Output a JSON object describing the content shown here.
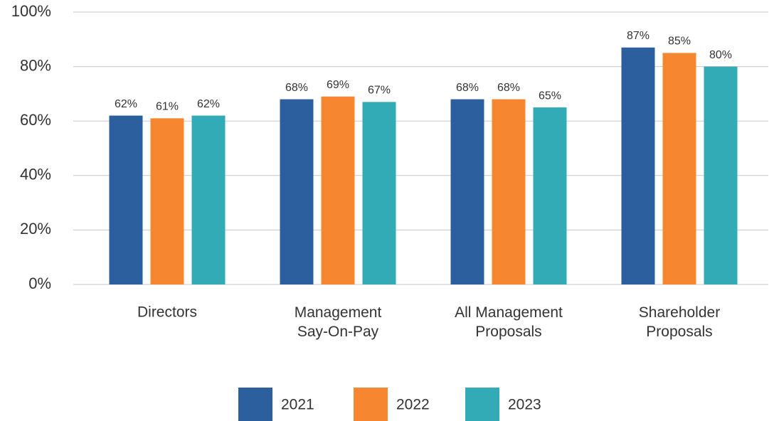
{
  "chart_data": {
    "type": "bar",
    "categories": [
      "Directors",
      "Management\nSay-On-Pay",
      "All Management\nProposals",
      "Shareholder\nProposals"
    ],
    "series": [
      {
        "name": "2021",
        "color": "#2c5f9e",
        "values": [
          62,
          68,
          68,
          87
        ],
        "value_labels": [
          "62%",
          "68%",
          "68%",
          "87%"
        ]
      },
      {
        "name": "2022",
        "color": "#f6862f",
        "values": [
          61,
          69,
          68,
          85
        ],
        "value_labels": [
          "61%",
          "69%",
          "68%",
          "85%"
        ]
      },
      {
        "name": "2023",
        "color": "#33abb6",
        "values": [
          62,
          67,
          65,
          80
        ],
        "value_labels": [
          "62%",
          "67%",
          "65%",
          "80%"
        ]
      }
    ],
    "ylim": [
      0,
      100
    ],
    "yticks": [
      {
        "value": 0,
        "label": "0%"
      },
      {
        "value": 20,
        "label": "20%"
      },
      {
        "value": 40,
        "label": "40%"
      },
      {
        "value": 60,
        "label": "60%"
      },
      {
        "value": 80,
        "label": "80%"
      },
      {
        "value": 100,
        "label": "100%"
      }
    ],
    "grid": true,
    "legend": "bottom"
  }
}
